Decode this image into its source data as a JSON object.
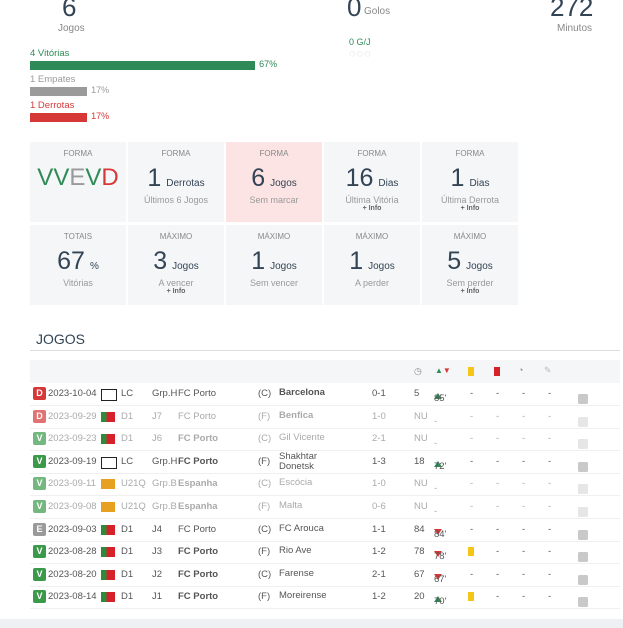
{
  "top": {
    "jogos": {
      "value": "6",
      "label": "Jogos"
    },
    "golos": {
      "value": "0",
      "label": "Golos"
    },
    "gj": "0 G/J",
    "minutos": {
      "value": "272",
      "label": "Minutos"
    }
  },
  "results": [
    {
      "label": "4 Vitórias",
      "pct": {
        "value": 67,
        "label": "67%"
      },
      "color": "#2e8b57"
    },
    {
      "label": "1 Empates",
      "pct": {
        "value": 17,
        "label": "17%"
      },
      "color": "#9a9a9a"
    },
    {
      "label": "1 Derrotas",
      "pct": {
        "value": 17,
        "label": "17%"
      },
      "color": "#d63838"
    }
  ],
  "cards": [
    {
      "title": "FORMA",
      "form": [
        "V",
        "V",
        "E",
        "V",
        "D"
      ]
    },
    {
      "title": "FORMA",
      "value": "1",
      "unit": "Derrotas",
      "sub": "Últimos 6 Jogos"
    },
    {
      "title": "FORMA",
      "value": "6",
      "unit": "Jogos",
      "sub": "Sem marcar",
      "highlight": true
    },
    {
      "title": "FORMA",
      "value": "16",
      "unit": "Dias",
      "sub": "Última Vitória",
      "info": "+ Info"
    },
    {
      "title": "FORMA",
      "value": "1",
      "unit": "Dias",
      "sub": "Última Derrota",
      "info": "+ Info"
    },
    {
      "title": "TOTAIS",
      "value": "67",
      "unit": "%",
      "sub": "Vitórias"
    },
    {
      "title": "MÁXIMO",
      "value": "3",
      "unit": "Jogos",
      "sub": "A vencer",
      "info": "+ Info"
    },
    {
      "title": "MÁXIMO",
      "value": "1",
      "unit": "Jogos",
      "sub": "Sem vencer"
    },
    {
      "title": "MÁXIMO",
      "value": "1",
      "unit": "Jogos",
      "sub": "A perder"
    },
    {
      "title": "MÁXIMO",
      "value": "5",
      "unit": "Jogos",
      "sub": "Sem perder",
      "info": "+ Info"
    }
  ],
  "games": {
    "title": "JOGOS",
    "rows": [
      {
        "result": "D",
        "date": "2023-10-04",
        "comp": "LC",
        "round": "Grp.H",
        "home": "FC Porto",
        "venue": "(C)",
        "opp": "Barcelona",
        "score": "0-1",
        "min": "5",
        "sub": "85'",
        "sub_in": true,
        "marks": [
          "-",
          "-",
          "-",
          "-"
        ],
        "bold": "opp"
      },
      {
        "result": "D",
        "date": "2023-09-29",
        "comp": "D1",
        "round": "J7",
        "home": "FC Porto",
        "venue": "(F)",
        "opp": "Benfica",
        "score": "1-0",
        "min": "NU",
        "sub": "-",
        "marks": [
          "-",
          "-",
          "-",
          "-"
        ],
        "bold": "opp",
        "faded": true
      },
      {
        "result": "V",
        "date": "2023-09-23",
        "comp": "D1",
        "round": "J6",
        "home": "FC Porto",
        "venue": "(C)",
        "opp": "Gil Vicente",
        "score": "2-1",
        "min": "NU",
        "sub": "-",
        "marks": [
          "-",
          "-",
          "-",
          "-"
        ],
        "bold": "home",
        "faded": true
      },
      {
        "result": "V",
        "date": "2023-09-19",
        "comp": "LC",
        "round": "Grp.H",
        "home": "FC Porto",
        "venue": "(F)",
        "opp": "Shakhtar Donetsk",
        "score": "1-3",
        "min": "18",
        "sub": "72'",
        "sub_in": true,
        "marks": [
          "-",
          "-",
          "-",
          "-"
        ],
        "bold": "home"
      },
      {
        "result": "V",
        "date": "2023-09-11",
        "comp": "U21Q",
        "round": "Grp.B",
        "home": "Espanha",
        "venue": "(C)",
        "opp": "Escócia",
        "score": "1-0",
        "min": "NU",
        "sub": "-",
        "marks": [
          "-",
          "-",
          "-",
          "-"
        ],
        "bold": "home",
        "faded": true
      },
      {
        "result": "V",
        "date": "2023-09-08",
        "comp": "U21Q",
        "round": "Grp.B",
        "home": "Espanha",
        "venue": "(F)",
        "opp": "Malta",
        "score": "0-6",
        "min": "NU",
        "sub": "-",
        "marks": [
          "-",
          "-",
          "-",
          "-"
        ],
        "bold": "home",
        "faded": true
      },
      {
        "result": "E",
        "date": "2023-09-03",
        "comp": "D1",
        "round": "J4",
        "home": "FC Porto",
        "venue": "(C)",
        "opp": "FC Arouca",
        "score": "1-1",
        "min": "84",
        "sub": "84'",
        "sub_in": false,
        "marks": [
          "-",
          "-",
          "-",
          "-"
        ]
      },
      {
        "result": "V",
        "date": "2023-08-28",
        "comp": "D1",
        "round": "J3",
        "home": "FC Porto",
        "venue": "(F)",
        "opp": "Rio Ave",
        "score": "1-2",
        "min": "78",
        "sub": "78'",
        "sub_in": false,
        "marks": [
          null,
          "-",
          "-",
          "-"
        ],
        "yellow_card": true,
        "bold": "home"
      },
      {
        "result": "V",
        "date": "2023-08-20",
        "comp": "D1",
        "round": "J2",
        "home": "FC Porto",
        "venue": "(C)",
        "opp": "Farense",
        "score": "2-1",
        "min": "67",
        "sub": "67'",
        "sub_in": false,
        "marks": [
          "-",
          "-",
          "-",
          "-"
        ],
        "bold": "home"
      },
      {
        "result": "V",
        "date": "2023-08-14",
        "comp": "D1",
        "round": "J1",
        "home": "FC Porto",
        "venue": "(F)",
        "opp": "Moreirense",
        "score": "1-2",
        "min": "20",
        "sub": "70'",
        "sub_in": true,
        "marks": [
          null,
          "-",
          "-",
          "-"
        ],
        "yellow_card": true,
        "bold": "home"
      }
    ]
  }
}
